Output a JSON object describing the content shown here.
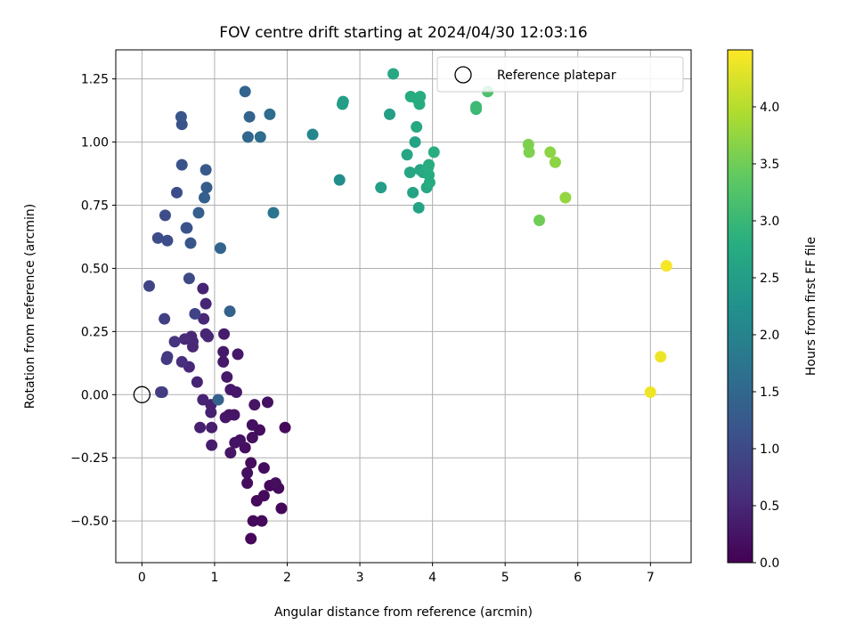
{
  "chart_data": {
    "type": "scatter",
    "title": "FOV centre drift starting at 2024/04/30 12:03:16",
    "xlabel": "Angular distance from reference (arcmin)",
    "ylabel": "Rotation from reference (arcmin)",
    "xlim": [
      -0.36,
      7.56
    ],
    "ylim": [
      -0.665,
      1.365
    ],
    "x_ticks": [
      0,
      1,
      2,
      3,
      4,
      5,
      6,
      7
    ],
    "y_ticks": [
      -0.5,
      -0.25,
      0.0,
      0.25,
      0.5,
      0.75,
      1.0,
      1.25
    ],
    "y_tick_labels": [
      "−0.50",
      "−0.25",
      "0.00",
      "0.25",
      "0.50",
      "0.75",
      "1.00",
      "1.25"
    ],
    "grid": true,
    "legend": {
      "placement": "top-right",
      "entries": [
        "Reference platepar"
      ]
    },
    "colormap": "viridis",
    "colorbar": {
      "label": "Hours from first FF file",
      "range": [
        0,
        4.5
      ],
      "ticks": [
        0.0,
        0.5,
        1.0,
        1.5,
        2.0,
        2.5,
        3.0,
        3.5,
        4.0
      ],
      "tick_labels": [
        "0.0",
        "0.5",
        "1.0",
        "1.5",
        "2.0",
        "2.5",
        "3.0",
        "3.5",
        "4.0"
      ]
    },
    "reference_point": {
      "x": 0.0,
      "y": 0.0,
      "name": "Reference platepar"
    },
    "points": [
      {
        "x": 1.5,
        "y": -0.57,
        "h": 0.08
      },
      {
        "x": 1.53,
        "y": -0.5,
        "h": 0.1
      },
      {
        "x": 1.65,
        "y": -0.5,
        "h": 0.1
      },
      {
        "x": 1.58,
        "y": -0.42,
        "h": 0.12
      },
      {
        "x": 1.68,
        "y": -0.4,
        "h": 0.12
      },
      {
        "x": 1.76,
        "y": -0.36,
        "h": 0.1
      },
      {
        "x": 1.88,
        "y": -0.37,
        "h": 0.12
      },
      {
        "x": 1.92,
        "y": -0.45,
        "h": 0.08
      },
      {
        "x": 1.84,
        "y": -0.35,
        "h": 0.15
      },
      {
        "x": 1.45,
        "y": -0.35,
        "h": 0.15
      },
      {
        "x": 1.45,
        "y": -0.31,
        "h": 0.18
      },
      {
        "x": 1.68,
        "y": -0.29,
        "h": 0.15
      },
      {
        "x": 1.5,
        "y": -0.27,
        "h": 0.15
      },
      {
        "x": 1.42,
        "y": -0.21,
        "h": 0.18
      },
      {
        "x": 1.35,
        "y": -0.18,
        "h": 0.2
      },
      {
        "x": 1.28,
        "y": -0.19,
        "h": 0.22
      },
      {
        "x": 1.52,
        "y": -0.17,
        "h": 0.18
      },
      {
        "x": 1.62,
        "y": -0.14,
        "h": 0.15
      },
      {
        "x": 1.52,
        "y": -0.12,
        "h": 0.18
      },
      {
        "x": 1.97,
        "y": -0.13,
        "h": 0.12
      },
      {
        "x": 1.73,
        "y": -0.03,
        "h": 0.2
      },
      {
        "x": 1.55,
        "y": -0.04,
        "h": 0.25
      },
      {
        "x": 1.22,
        "y": -0.23,
        "h": 0.25
      },
      {
        "x": 1.2,
        "y": -0.08,
        "h": 0.25
      },
      {
        "x": 1.15,
        "y": -0.09,
        "h": 0.28
      },
      {
        "x": 1.27,
        "y": -0.08,
        "h": 0.25
      },
      {
        "x": 1.3,
        "y": 0.01,
        "h": 0.3
      },
      {
        "x": 1.22,
        "y": 0.02,
        "h": 0.3
      },
      {
        "x": 1.17,
        "y": 0.07,
        "h": 0.3
      },
      {
        "x": 1.32,
        "y": 0.16,
        "h": 0.3
      },
      {
        "x": 1.12,
        "y": 0.13,
        "h": 0.32
      },
      {
        "x": 1.12,
        "y": 0.17,
        "h": 0.32
      },
      {
        "x": 1.13,
        "y": 0.24,
        "h": 0.35
      },
      {
        "x": 0.96,
        "y": -0.2,
        "h": 0.35
      },
      {
        "x": 0.96,
        "y": -0.13,
        "h": 0.38
      },
      {
        "x": 0.8,
        "y": -0.13,
        "h": 0.4
      },
      {
        "x": 0.95,
        "y": -0.07,
        "h": 0.4
      },
      {
        "x": 0.95,
        "y": -0.04,
        "h": 0.42
      },
      {
        "x": 0.84,
        "y": -0.02,
        "h": 0.45
      },
      {
        "x": 0.76,
        "y": 0.05,
        "h": 0.45
      },
      {
        "x": 0.65,
        "y": 0.11,
        "h": 0.5
      },
      {
        "x": 0.7,
        "y": 0.19,
        "h": 0.5
      },
      {
        "x": 0.7,
        "y": 0.21,
        "h": 0.5
      },
      {
        "x": 0.68,
        "y": 0.23,
        "h": 0.5
      },
      {
        "x": 0.59,
        "y": 0.22,
        "h": 0.55
      },
      {
        "x": 0.91,
        "y": 0.23,
        "h": 0.5
      },
      {
        "x": 0.88,
        "y": 0.24,
        "h": 0.48
      },
      {
        "x": 0.85,
        "y": 0.3,
        "h": 0.5
      },
      {
        "x": 0.88,
        "y": 0.36,
        "h": 0.48
      },
      {
        "x": 0.84,
        "y": 0.42,
        "h": 0.45
      },
      {
        "x": 0.55,
        "y": 0.13,
        "h": 0.6
      },
      {
        "x": 0.45,
        "y": 0.21,
        "h": 0.7
      },
      {
        "x": 0.35,
        "y": 0.15,
        "h": 0.75
      },
      {
        "x": 0.34,
        "y": 0.14,
        "h": 0.78
      },
      {
        "x": 0.28,
        "y": 0.01,
        "h": 0.75
      },
      {
        "x": 0.26,
        "y": 0.01,
        "h": 0.8
      },
      {
        "x": 0.31,
        "y": 0.3,
        "h": 0.85
      },
      {
        "x": 0.1,
        "y": 0.43,
        "h": 0.9
      },
      {
        "x": 0.73,
        "y": 0.32,
        "h": 0.9
      },
      {
        "x": 0.65,
        "y": 0.46,
        "h": 1.0
      },
      {
        "x": 1.05,
        "y": -0.02,
        "h": 1.4
      },
      {
        "x": 1.21,
        "y": 0.33,
        "h": 1.4
      },
      {
        "x": 0.22,
        "y": 0.62,
        "h": 1.05
      },
      {
        "x": 0.35,
        "y": 0.61,
        "h": 1.05
      },
      {
        "x": 0.32,
        "y": 0.71,
        "h": 1.05
      },
      {
        "x": 0.67,
        "y": 0.6,
        "h": 1.2
      },
      {
        "x": 0.62,
        "y": 0.66,
        "h": 1.2
      },
      {
        "x": 0.61,
        "y": 0.66,
        "h": 1.15
      },
      {
        "x": 0.48,
        "y": 0.8,
        "h": 1.05
      },
      {
        "x": 0.78,
        "y": 0.72,
        "h": 1.35
      },
      {
        "x": 0.86,
        "y": 0.78,
        "h": 1.35
      },
      {
        "x": 0.89,
        "y": 0.82,
        "h": 1.3
      },
      {
        "x": 0.88,
        "y": 0.89,
        "h": 1.25
      },
      {
        "x": 0.55,
        "y": 0.91,
        "h": 1.15
      },
      {
        "x": 0.55,
        "y": 1.07,
        "h": 1.15
      },
      {
        "x": 0.54,
        "y": 1.1,
        "h": 1.2
      },
      {
        "x": 1.08,
        "y": 0.58,
        "h": 1.45
      },
      {
        "x": 1.42,
        "y": 1.2,
        "h": 1.45
      },
      {
        "x": 1.48,
        "y": 1.1,
        "h": 1.45
      },
      {
        "x": 1.46,
        "y": 1.02,
        "h": 1.5
      },
      {
        "x": 1.63,
        "y": 1.02,
        "h": 1.6
      },
      {
        "x": 1.76,
        "y": 1.11,
        "h": 1.6
      },
      {
        "x": 1.81,
        "y": 0.72,
        "h": 1.75
      },
      {
        "x": 2.35,
        "y": 1.03,
        "h": 2.05
      },
      {
        "x": 2.72,
        "y": 0.85,
        "h": 2.2
      },
      {
        "x": 2.76,
        "y": 1.15,
        "h": 2.5
      },
      {
        "x": 2.77,
        "y": 1.16,
        "h": 2.5
      },
      {
        "x": 3.29,
        "y": 0.82,
        "h": 2.5
      },
      {
        "x": 3.41,
        "y": 1.11,
        "h": 2.5
      },
      {
        "x": 3.46,
        "y": 1.27,
        "h": 2.7
      },
      {
        "x": 3.65,
        "y": 0.95,
        "h": 2.65
      },
      {
        "x": 3.69,
        "y": 0.88,
        "h": 2.65
      },
      {
        "x": 3.73,
        "y": 0.8,
        "h": 2.6
      },
      {
        "x": 3.76,
        "y": 1.0,
        "h": 2.6
      },
      {
        "x": 3.78,
        "y": 1.06,
        "h": 2.7
      },
      {
        "x": 3.7,
        "y": 1.18,
        "h": 2.75
      },
      {
        "x": 3.79,
        "y": 1.17,
        "h": 2.75
      },
      {
        "x": 3.83,
        "y": 1.18,
        "h": 2.8
      },
      {
        "x": 3.82,
        "y": 1.15,
        "h": 2.75
      },
      {
        "x": 3.81,
        "y": 0.74,
        "h": 2.6
      },
      {
        "x": 3.83,
        "y": 0.89,
        "h": 2.65
      },
      {
        "x": 3.87,
        "y": 0.88,
        "h": 2.7
      },
      {
        "x": 3.92,
        "y": 0.82,
        "h": 2.7
      },
      {
        "x": 3.96,
        "y": 0.84,
        "h": 2.75
      },
      {
        "x": 3.95,
        "y": 0.87,
        "h": 2.75
      },
      {
        "x": 3.94,
        "y": 0.9,
        "h": 2.8
      },
      {
        "x": 3.95,
        "y": 0.91,
        "h": 2.8
      },
      {
        "x": 4.02,
        "y": 0.96,
        "h": 2.8
      },
      {
        "x": 4.6,
        "y": 1.13,
        "h": 3.0
      },
      {
        "x": 4.6,
        "y": 1.14,
        "h": 3.05
      },
      {
        "x": 4.76,
        "y": 1.2,
        "h": 3.2
      },
      {
        "x": 5.32,
        "y": 0.99,
        "h": 3.6
      },
      {
        "x": 5.33,
        "y": 0.96,
        "h": 3.6
      },
      {
        "x": 5.47,
        "y": 0.69,
        "h": 3.5
      },
      {
        "x": 5.62,
        "y": 0.96,
        "h": 3.7
      },
      {
        "x": 5.69,
        "y": 0.92,
        "h": 3.7
      },
      {
        "x": 5.83,
        "y": 0.78,
        "h": 3.75
      },
      {
        "x": 7.0,
        "y": 0.01,
        "h": 4.4
      },
      {
        "x": 7.14,
        "y": 0.15,
        "h": 4.4
      },
      {
        "x": 7.22,
        "y": 0.51,
        "h": 4.45
      }
    ]
  }
}
